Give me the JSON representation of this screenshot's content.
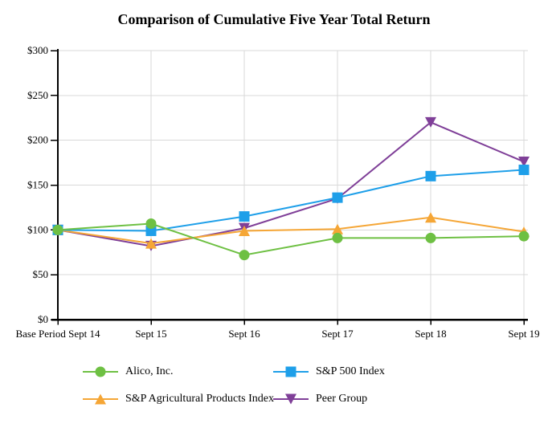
{
  "title": "Comparison of Cumulative Five Year Total Return",
  "chart_data": {
    "type": "line",
    "title": "Comparison of Cumulative Five Year Total Return",
    "categories": [
      "Base Period Sept 14",
      "Sept 15",
      "Sept 16",
      "Sept 17",
      "Sept 18",
      "Sept 19"
    ],
    "series": [
      {
        "name": "Alico, Inc.",
        "color": "#6EC043",
        "marker": "circle",
        "values": [
          100,
          107,
          72,
          91,
          91,
          93
        ]
      },
      {
        "name": "S&P 500 Index",
        "color": "#1E9FE9",
        "marker": "square",
        "values": [
          100,
          99,
          115,
          136,
          160,
          167
        ]
      },
      {
        "name": "S&P Agricultural Products Index",
        "color": "#F5A636",
        "marker": "triangle-up",
        "values": [
          100,
          85,
          99,
          101,
          114,
          98
        ]
      },
      {
        "name": "Peer Group",
        "color": "#7F3F98",
        "marker": "triangle-down",
        "values": [
          100,
          82,
          102,
          135,
          220,
          176
        ]
      }
    ],
    "y_ticks": [
      0,
      50,
      100,
      150,
      200,
      250,
      300
    ],
    "y_tick_labels": [
      "$0",
      "$50",
      "$100",
      "$150",
      "$200",
      "$250",
      "$300"
    ],
    "ylim": [
      0,
      300
    ],
    "xlabel": "",
    "ylabel": "",
    "grid": true,
    "legend_position": "bottom",
    "axis_color": "#000000",
    "grid_color": "#D9D9D9"
  }
}
